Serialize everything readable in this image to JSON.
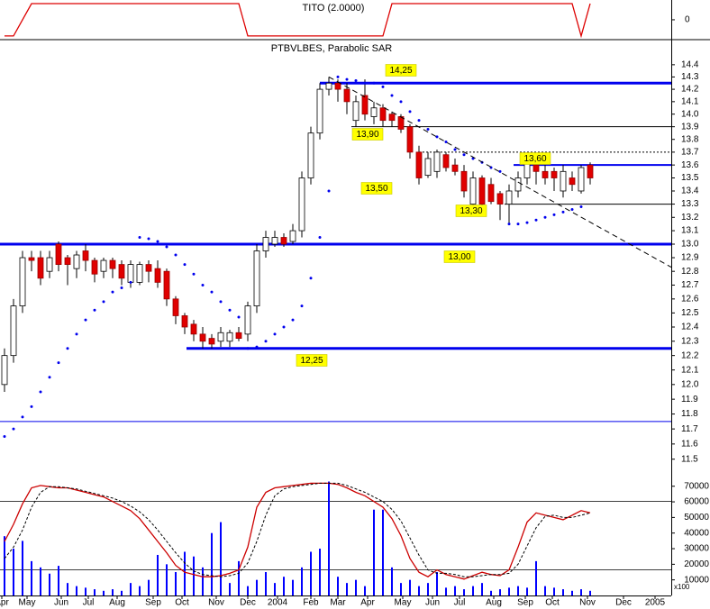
{
  "chart_data": [
    {
      "type": "line",
      "title": "TITO (2.0000)",
      "color": "#dd0000",
      "x": [
        0,
        1,
        2,
        3,
        4,
        5,
        6,
        7,
        8,
        9,
        10,
        11,
        12,
        13,
        14,
        15,
        16,
        17,
        18,
        19,
        20,
        21,
        22,
        23,
        24,
        25,
        26,
        27,
        28,
        29,
        30,
        31,
        32,
        33,
        34,
        35,
        36,
        37,
        38,
        39,
        40,
        41,
        42,
        43,
        44,
        45,
        46,
        47,
        48,
        49,
        50,
        51,
        52,
        53,
        54,
        55,
        56,
        57,
        58,
        59,
        60,
        61,
        62,
        63,
        64,
        65
      ],
      "values": [
        -1,
        -1,
        0,
        1,
        1,
        1,
        1,
        1,
        1,
        1,
        1,
        1,
        1,
        1,
        1,
        1,
        1,
        1,
        1,
        1,
        1,
        1,
        1,
        1,
        1,
        1,
        1,
        -1,
        -1,
        -1,
        -1,
        -1,
        -1,
        -1,
        -1,
        -1,
        -1,
        -1,
        -1,
        -1,
        -1,
        -1,
        -1,
        1,
        1,
        1,
        1,
        1,
        1,
        1,
        1,
        1,
        1,
        1,
        1,
        1,
        1,
        1,
        1,
        1,
        1,
        1,
        1,
        1,
        -1,
        1
      ],
      "xlim": [
        -0.5,
        74
      ],
      "ylim": [
        -1.17,
        1.22
      ],
      "yticks": [
        0
      ]
    },
    {
      "type": "candlestick",
      "title": "PTBVLBES, Parabolic SAR",
      "log_scale": true,
      "up_color": "#ffffff",
      "down_color": "#e00000",
      "sar_color": "#0000ee",
      "x": [
        0,
        1,
        2,
        3,
        4,
        5,
        6,
        7,
        8,
        9,
        10,
        11,
        12,
        13,
        14,
        15,
        16,
        17,
        18,
        19,
        20,
        21,
        22,
        23,
        24,
        25,
        26,
        27,
        28,
        29,
        30,
        31,
        32,
        33,
        34,
        35,
        36,
        37,
        38,
        39,
        40,
        41,
        42,
        43,
        44,
        45,
        46,
        47,
        48,
        49,
        50,
        51,
        52,
        53,
        54,
        55,
        56,
        57,
        58,
        59,
        60,
        61,
        62,
        63,
        64,
        65
      ],
      "open": [
        12.0,
        12.2,
        12.55,
        12.9,
        12.9,
        12.8,
        13.0,
        12.9,
        12.82,
        12.95,
        12.88,
        12.8,
        12.88,
        12.85,
        12.72,
        12.72,
        12.85,
        12.82,
        12.8,
        12.6,
        12.48,
        12.42,
        12.35,
        12.32,
        12.3,
        12.3,
        12.36,
        12.35,
        12.55,
        12.95,
        13.0,
        13.05,
        13.02,
        13.1,
        13.5,
        13.85,
        14.2,
        14.25,
        14.2,
        13.95,
        14.15,
        13.98,
        14.05,
        14.0,
        13.98,
        13.9,
        13.7,
        13.52,
        13.55,
        13.68,
        13.6,
        13.55,
        13.3,
        13.5,
        13.45,
        13.38,
        13.3,
        13.4,
        13.5,
        13.6,
        13.55,
        13.55,
        13.4,
        13.5,
        13.4,
        13.6
      ],
      "high": [
        12.25,
        12.6,
        12.95,
        12.95,
        12.95,
        12.95,
        13.02,
        12.92,
        12.95,
        13.0,
        12.9,
        12.9,
        12.9,
        12.88,
        12.88,
        12.87,
        12.88,
        12.88,
        12.82,
        12.62,
        12.5,
        12.45,
        12.4,
        12.35,
        12.4,
        12.38,
        12.4,
        12.58,
        13.0,
        13.1,
        13.1,
        13.08,
        13.15,
        13.55,
        13.9,
        14.25,
        14.3,
        14.28,
        14.25,
        14.15,
        14.28,
        14.1,
        14.08,
        14.02,
        14.0,
        13.92,
        13.75,
        13.7,
        13.72,
        13.7,
        13.65,
        13.6,
        13.55,
        13.52,
        13.5,
        13.4,
        13.45,
        13.55,
        13.65,
        13.65,
        13.6,
        13.58,
        13.6,
        13.55,
        13.6,
        13.62
      ],
      "low": [
        11.95,
        12.15,
        12.5,
        12.8,
        12.7,
        12.75,
        12.8,
        12.7,
        12.75,
        12.8,
        12.72,
        12.75,
        12.75,
        12.7,
        12.68,
        12.7,
        12.72,
        12.68,
        12.55,
        12.42,
        12.35,
        12.3,
        12.25,
        12.25,
        12.26,
        12.26,
        12.3,
        12.3,
        12.5,
        12.9,
        12.98,
        12.98,
        13.0,
        13.05,
        13.45,
        13.8,
        14.15,
        14.1,
        14.0,
        13.9,
        13.95,
        13.92,
        13.9,
        13.9,
        13.85,
        13.65,
        13.45,
        13.5,
        13.5,
        13.55,
        13.52,
        13.35,
        13.28,
        13.28,
        13.3,
        13.18,
        13.15,
        13.35,
        13.45,
        13.45,
        13.45,
        13.4,
        13.35,
        13.4,
        13.38,
        13.45
      ],
      "close": [
        12.2,
        12.55,
        12.9,
        12.88,
        12.75,
        12.9,
        12.85,
        12.85,
        12.92,
        12.88,
        12.78,
        12.88,
        12.82,
        12.75,
        12.85,
        12.85,
        12.8,
        12.72,
        12.6,
        12.48,
        12.4,
        12.35,
        12.3,
        12.28,
        12.36,
        12.36,
        12.32,
        12.55,
        12.95,
        13.05,
        13.05,
        13.0,
        13.1,
        13.5,
        13.85,
        14.2,
        14.25,
        14.2,
        14.1,
        14.1,
        14.0,
        14.05,
        13.95,
        13.95,
        13.88,
        13.7,
        13.5,
        13.65,
        13.7,
        13.58,
        13.55,
        13.4,
        13.5,
        13.3,
        13.32,
        13.3,
        13.4,
        13.5,
        13.62,
        13.55,
        13.5,
        13.5,
        13.55,
        13.45,
        13.58,
        13.5
      ],
      "sar": [
        11.65,
        11.7,
        11.78,
        11.85,
        11.95,
        12.05,
        12.15,
        12.25,
        12.35,
        12.45,
        12.52,
        12.58,
        12.65,
        12.68,
        12.72,
        13.05,
        13.04,
        13.02,
        12.98,
        12.92,
        12.85,
        12.78,
        12.7,
        12.65,
        12.58,
        12.52,
        12.47,
        12.25,
        12.26,
        12.3,
        12.35,
        12.4,
        12.45,
        12.55,
        12.75,
        13.05,
        13.4,
        14.3,
        14.28,
        14.27,
        14.25,
        14.25,
        14.22,
        14.15,
        14.1,
        14.02,
        13.95,
        13.88,
        13.82,
        13.78,
        13.72,
        13.68,
        13.65,
        13.62,
        13.58,
        13.55,
        13.15,
        13.15,
        13.16,
        13.18,
        13.2,
        13.22,
        13.24,
        13.26,
        13.28,
        null
      ],
      "levels": [
        {
          "value": 14.25,
          "style": "thick"
        },
        {
          "value": 13.9,
          "style": "thin"
        },
        {
          "value": 13.7,
          "style": "dotted"
        },
        {
          "value": 13.6,
          "style": "medium"
        },
        {
          "value": 13.3,
          "style": "thin"
        },
        {
          "value": 13.0,
          "style": "thick"
        },
        {
          "value": 12.25,
          "style": "thick"
        },
        {
          "value": 11.75,
          "style": "thin-blue"
        }
      ],
      "trendline": {
        "x": [
          36,
          74
        ],
        "y": [
          14.3,
          12.83
        ]
      },
      "annotations": [
        "14,25",
        "13,90",
        "13,50",
        "13,30",
        "13,60",
        "13,00",
        "12,25"
      ],
      "xlim": [
        -0.5,
        74
      ],
      "ylim": [
        11.41,
        14.6
      ],
      "yticks": [
        11.5,
        11.6,
        11.7,
        11.8,
        11.9,
        {
          "value": 12,
          "label": "12.0"
        },
        12.1,
        12.2,
        12.3,
        12.4,
        12.5,
        12.6,
        12.7,
        12.8,
        12.9,
        {
          "value": 13,
          "label": "13.0"
        },
        13.1,
        13.2,
        13.3,
        13.4,
        13.5,
        13.6,
        13.7,
        13.8,
        13.9,
        {
          "value": 14,
          "label": "14.0"
        },
        14.1,
        14.2,
        14.3,
        14.4
      ]
    },
    {
      "type": "volume-stochastic",
      "y_unit": "x100",
      "x": [
        0,
        1,
        2,
        3,
        4,
        5,
        6,
        7,
        8,
        9,
        10,
        11,
        12,
        13,
        14,
        15,
        16,
        17,
        18,
        19,
        20,
        21,
        22,
        23,
        24,
        25,
        26,
        27,
        28,
        29,
        30,
        31,
        32,
        33,
        34,
        35,
        36,
        37,
        38,
        39,
        40,
        41,
        42,
        43,
        44,
        45,
        46,
        47,
        48,
        49,
        50,
        51,
        52,
        53,
        54,
        55,
        56,
        57,
        58,
        59,
        60,
        61,
        62,
        63,
        64,
        65
      ],
      "series": [
        {
          "color": "#0000ff",
          "axis": "y",
          "values": [
            38000,
            30000,
            35000,
            22000,
            18000,
            14000,
            19000,
            8000,
            6000,
            5000,
            4000,
            3000,
            4000,
            3000,
            8000,
            6000,
            10000,
            26000,
            20000,
            15000,
            28000,
            25000,
            18000,
            40000,
            47000,
            8000,
            22000,
            6000,
            10000,
            15000,
            8000,
            12000,
            10000,
            18000,
            28000,
            30000,
            73000,
            12000,
            8000,
            10000,
            6000,
            55000,
            55000,
            18000,
            8000,
            10000,
            6000,
            8000,
            15000,
            5000,
            6000,
            4000,
            6000,
            8000,
            3000,
            4000,
            5000,
            6000,
            5000,
            22000,
            6000,
            5000,
            4000,
            3000,
            4000,
            3000
          ]
        },
        {
          "color": "#cc0000",
          "axis": "y2",
          "values": [
            45,
            60,
            78,
            92,
            94,
            93,
            92,
            92,
            90,
            88,
            86,
            84,
            80,
            76,
            72,
            65,
            55,
            45,
            35,
            24,
            18,
            16,
            14,
            14,
            15,
            17,
            20,
            40,
            75,
            88,
            92,
            93,
            94,
            95,
            96,
            96,
            96,
            95,
            92,
            88,
            85,
            80,
            75,
            65,
            50,
            30,
            18,
            14,
            20,
            16,
            14,
            12,
            15,
            18,
            16,
            15,
            20,
            40,
            62,
            70,
            68,
            66,
            64,
            68,
            72,
            70
          ]
        },
        {
          "color": "#000000",
          "axis": "y2",
          "dashed": true,
          "values": [
            30,
            40,
            55,
            75,
            88,
            93,
            93,
            92,
            91,
            89,
            87,
            85,
            83,
            80,
            76,
            71,
            64,
            55,
            45,
            35,
            26,
            19,
            16,
            15,
            14,
            15,
            17,
            26,
            45,
            68,
            85,
            91,
            93,
            94,
            95,
            96,
            96,
            96,
            94,
            91,
            88,
            84,
            80,
            73,
            63,
            48,
            33,
            20,
            17,
            17,
            16,
            14,
            14,
            15,
            16,
            16,
            17,
            25,
            41,
            57,
            67,
            68,
            66,
            66,
            68,
            70
          ]
        }
      ],
      "levels": [
        20,
        80
      ],
      "xlim": [
        -0.5,
        74
      ],
      "ylim": [
        0,
        78500
      ],
      "y2lim": [
        -2.4,
        105
      ],
      "yticks": [
        10000,
        20000,
        30000,
        40000,
        50000,
        60000,
        70000
      ],
      "xticks": [
        {
          "value": -0.3,
          "label": "Apr"
        },
        {
          "value": 2.5,
          "label": "May"
        },
        {
          "value": 6.3,
          "label": "Jun"
        },
        {
          "value": 9.3,
          "label": "Jul"
        },
        {
          "value": 12.5,
          "label": "Aug"
        },
        {
          "value": 16.5,
          "label": "Sep"
        },
        {
          "value": 19.7,
          "label": "Oct"
        },
        {
          "value": 23.5,
          "label": "Nov"
        },
        {
          "value": 27,
          "label": "Dec"
        },
        {
          "value": 30.3,
          "label": "2004"
        },
        {
          "value": 34,
          "label": "Feb"
        },
        {
          "value": 37,
          "label": "Mar"
        },
        {
          "value": 40.3,
          "label": "Apr"
        },
        {
          "value": 44.2,
          "label": "May"
        },
        {
          "value": 47.5,
          "label": "Jun"
        },
        {
          "value": 50.5,
          "label": "Jul"
        },
        {
          "value": 54.3,
          "label": "Aug"
        },
        {
          "value": 57.8,
          "label": "Sep"
        },
        {
          "value": 60.8,
          "label": "Oct"
        },
        {
          "value": 64.7,
          "label": "Nov"
        },
        {
          "value": 68.7,
          "label": "Dec"
        },
        {
          "value": 72.2,
          "label": "2005"
        }
      ]
    }
  ]
}
